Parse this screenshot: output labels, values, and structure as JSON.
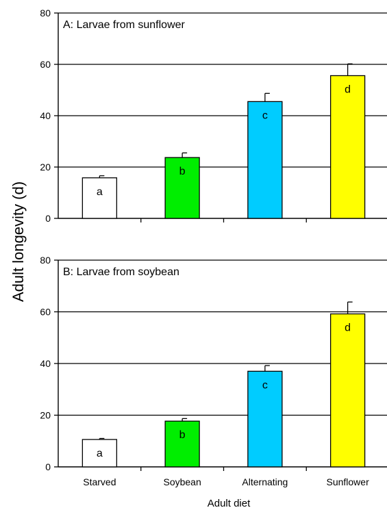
{
  "chart_data": [
    {
      "type": "bar",
      "title": "A: Larvae from sunflower",
      "xlabel": "Adult diet",
      "ylabel": "Adult longevity (d)",
      "ylim": [
        0,
        80
      ],
      "yticks": [
        0,
        20,
        40,
        60,
        80
      ],
      "grid": "horizontal",
      "categories": [
        "Starved",
        "Soybean",
        "Alternating",
        "Sunflower"
      ],
      "values": [
        15.8,
        23.7,
        45.5,
        55.6
      ],
      "errors": [
        0.8,
        1.8,
        3.2,
        4.6
      ],
      "letters": [
        "a",
        "b",
        "c",
        "d"
      ],
      "colors": [
        "#ffffff",
        "#00ee00",
        "#00ccff",
        "#ffff00"
      ]
    },
    {
      "type": "bar",
      "title": "B: Larvae from soybean",
      "xlabel": "Adult diet",
      "ylabel": "Adult longevity (d)",
      "ylim": [
        0,
        80
      ],
      "yticks": [
        0,
        20,
        40,
        60,
        80
      ],
      "grid": "horizontal",
      "categories": [
        "Starved",
        "Soybean",
        "Alternating",
        "Sunflower"
      ],
      "values": [
        10.6,
        17.7,
        37.0,
        59.2
      ],
      "errors": [
        0.4,
        1.0,
        2.2,
        4.6
      ],
      "letters": [
        "a",
        "b",
        "c",
        "d"
      ],
      "colors": [
        "#ffffff",
        "#00ee00",
        "#00ccff",
        "#ffff00"
      ]
    }
  ]
}
